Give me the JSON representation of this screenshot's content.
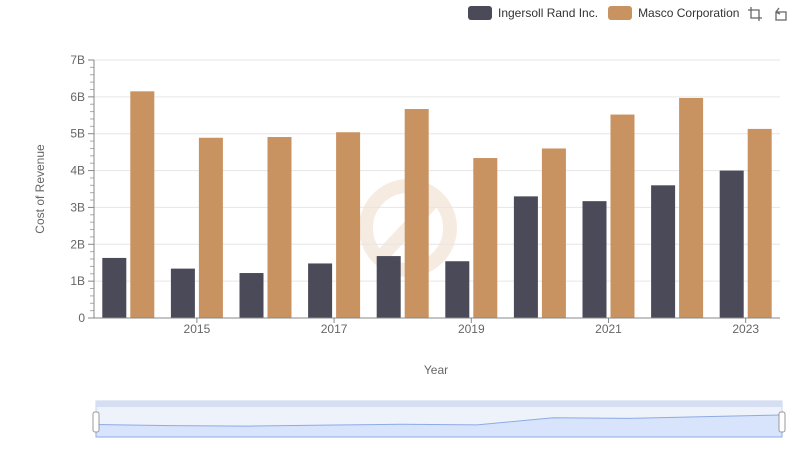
{
  "chart_data": {
    "type": "bar",
    "title": "",
    "xlabel": "Year",
    "ylabel": "Cost of Revenue",
    "x": [
      2014,
      2015,
      2016,
      2017,
      2018,
      2019,
      2020,
      2021,
      2022,
      2023
    ],
    "x_tick_labels": [
      "2015",
      "2017",
      "2019",
      "2021",
      "2023"
    ],
    "y_tick_labels": [
      "0",
      "1B",
      "2B",
      "3B",
      "4B",
      "5B",
      "6B",
      "7B"
    ],
    "ylim": [
      0,
      7000000000
    ],
    "grid": true,
    "legend_position": "top-right",
    "series": [
      {
        "name": "Ingersoll Rand Inc.",
        "color": "#4a4a58",
        "values": [
          1630000000,
          1340000000,
          1220000000,
          1480000000,
          1680000000,
          1540000000,
          3300000000,
          3170000000,
          3600000000,
          4000000000
        ]
      },
      {
        "name": "Masco Corporation",
        "color": "#c99261",
        "values": [
          6150000000,
          4890000000,
          4910000000,
          5040000000,
          5670000000,
          4340000000,
          4600000000,
          5520000000,
          5970000000,
          5130000000
        ]
      }
    ]
  },
  "legend": {
    "items": [
      {
        "label": "Ingersoll Rand Inc.",
        "color": "#4a4a58"
      },
      {
        "label": "Masco Corporation",
        "color": "#c99261"
      }
    ]
  },
  "toolbar": {
    "icons": [
      "crop-icon",
      "reset-icon"
    ]
  },
  "navigator": {
    "handle_color": "#e6ebf5",
    "fill_color": "#d8e4fb",
    "line_color": "#8eaae6"
  }
}
